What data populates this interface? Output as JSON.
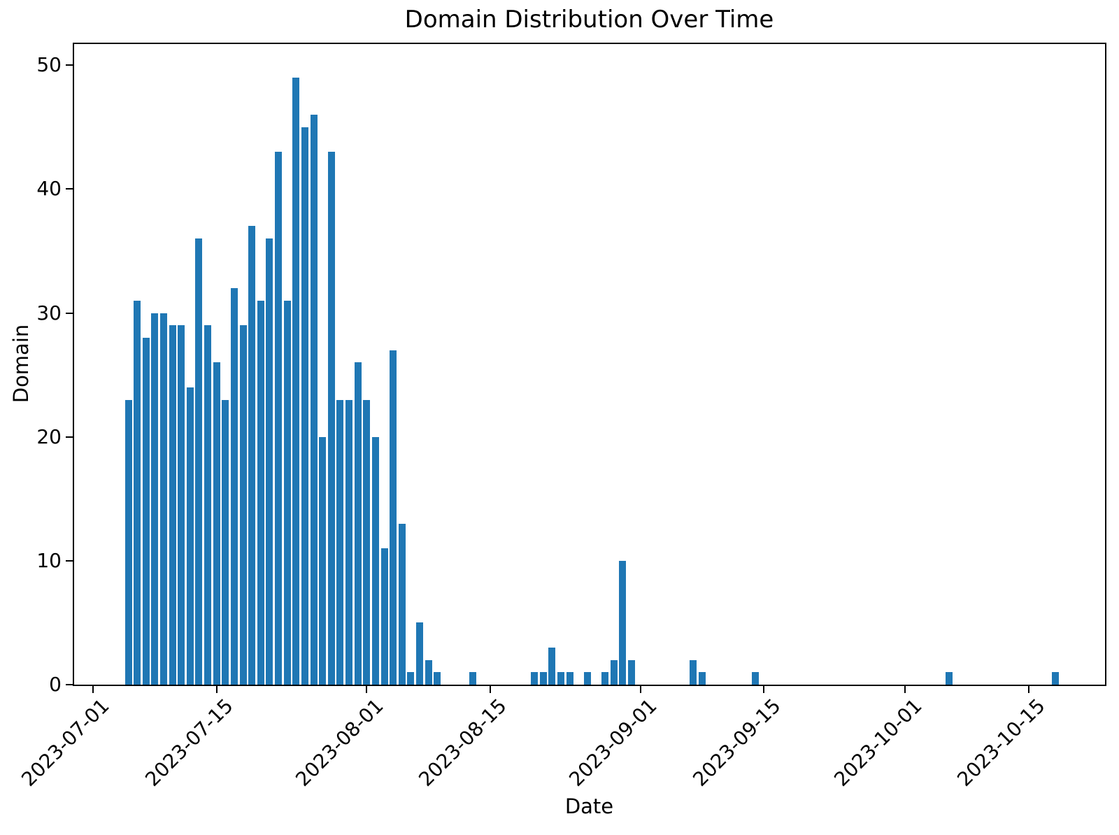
{
  "chart_data": {
    "type": "bar",
    "title": "Domain Distribution Over Time",
    "xlabel": "Date",
    "ylabel": "Domain",
    "bar_color": "#1f77b4",
    "background_color": "#ffffff",
    "x": [
      "2023-07-05",
      "2023-07-06",
      "2023-07-07",
      "2023-07-08",
      "2023-07-09",
      "2023-07-10",
      "2023-07-11",
      "2023-07-12",
      "2023-07-13",
      "2023-07-14",
      "2023-07-15",
      "2023-07-16",
      "2023-07-17",
      "2023-07-18",
      "2023-07-19",
      "2023-07-20",
      "2023-07-21",
      "2023-07-22",
      "2023-07-23",
      "2023-07-24",
      "2023-07-25",
      "2023-07-26",
      "2023-07-27",
      "2023-07-28",
      "2023-07-29",
      "2023-07-30",
      "2023-07-31",
      "2023-08-01",
      "2023-08-02",
      "2023-08-03",
      "2023-08-04",
      "2023-08-05",
      "2023-08-06",
      "2023-08-07",
      "2023-08-08",
      "2023-08-09",
      "2023-08-13",
      "2023-08-20",
      "2023-08-21",
      "2023-08-22",
      "2023-08-23",
      "2023-08-24",
      "2023-08-26",
      "2023-08-28",
      "2023-08-29",
      "2023-08-30",
      "2023-08-31",
      "2023-09-07",
      "2023-09-08",
      "2023-09-14",
      "2023-10-06",
      "2023-10-18"
    ],
    "values": [
      23,
      31,
      28,
      30,
      30,
      29,
      29,
      24,
      36,
      29,
      26,
      23,
      32,
      29,
      37,
      31,
      36,
      43,
      31,
      49,
      45,
      46,
      20,
      43,
      23,
      23,
      26,
      23,
      20,
      11,
      27,
      13,
      1,
      5,
      2,
      1,
      1,
      1,
      1,
      3,
      1,
      1,
      1,
      1,
      2,
      10,
      2,
      2,
      1,
      1,
      1,
      1
    ],
    "xtick_labels": [
      "2023-07-01",
      "2023-07-15",
      "2023-08-01",
      "2023-08-15",
      "2023-09-01",
      "2023-09-15",
      "2023-10-01",
      "2023-10-15"
    ],
    "ytick_values": [
      0,
      10,
      20,
      30,
      40,
      50
    ],
    "xtick_rotation_deg": 45,
    "xlim_days_from_first_xtick": [
      -2.14,
      114.63
    ],
    "ylim": [
      0,
      51.7
    ],
    "bar_width_days": 0.8,
    "grid": "off",
    "legend": "none"
  }
}
